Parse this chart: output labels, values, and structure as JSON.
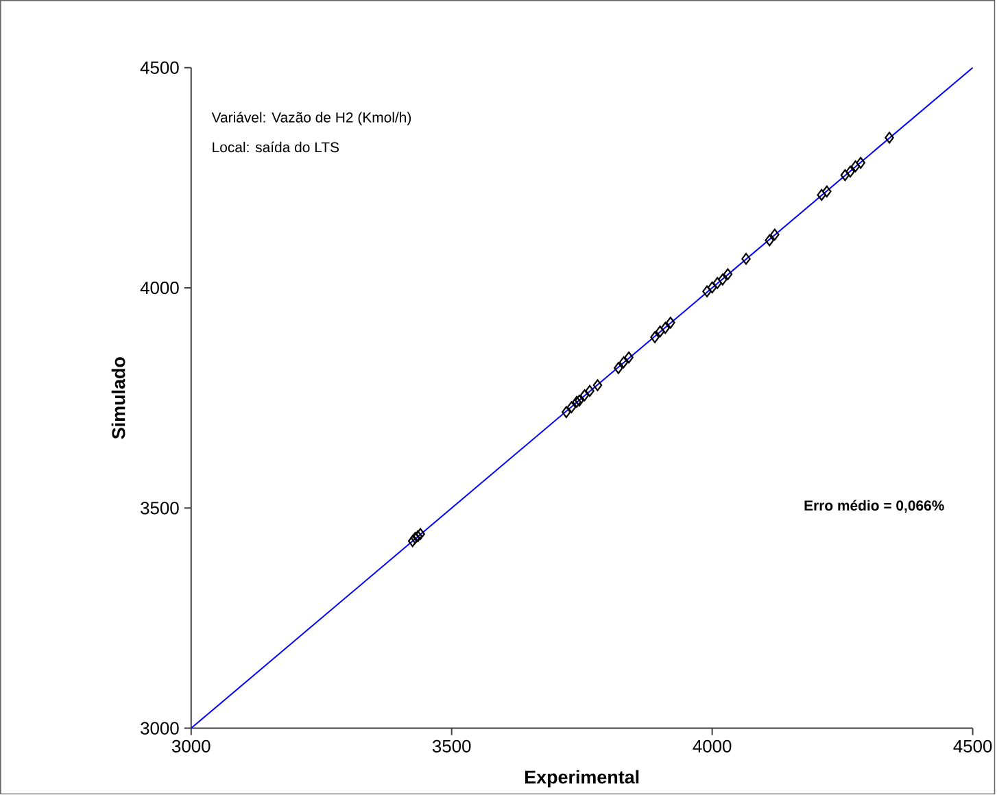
{
  "chart_data": {
    "type": "scatter",
    "xlabel": "Experimental",
    "ylabel": "Simulado",
    "xlim": [
      3000,
      4500
    ],
    "ylim": [
      3000,
      4500
    ],
    "xticks": [
      3000,
      3500,
      4000,
      4500
    ],
    "yticks": [
      3000,
      3500,
      4000,
      4500
    ],
    "grid": false,
    "marker": "diamond",
    "annotations": [
      "Variável: Vazão de H2 (Kmol/h)",
      "Local: saída do LTS",
      "**Erro médio = 0,066%**"
    ],
    "series": [
      {
        "color": "#000000",
        "x": [
          3425,
          3430,
          3435,
          3440,
          3720,
          3730,
          3740,
          3745,
          3755,
          3765,
          3780,
          3820,
          3830,
          3840,
          3890,
          3900,
          3910,
          3920,
          3990,
          4000,
          4010,
          4020,
          4030,
          4065,
          4110,
          4120,
          4210,
          4220,
          4255,
          4265,
          4275,
          4285,
          4340
        ],
        "values": [
          3425,
          3432,
          3436,
          3441,
          3718,
          3729,
          3741,
          3744,
          3756,
          3766,
          3779,
          3818,
          3831,
          3842,
          3888,
          3901,
          3909,
          3921,
          3992,
          4001,
          4011,
          4019,
          4031,
          4066,
          4108,
          4121,
          4211,
          4219,
          4256,
          4264,
          4276,
          4284,
          4341
        ]
      },
      {
        "type": "line",
        "color": "#0000ff",
        "marker": "none",
        "line_style": "solid",
        "x": [
          3000,
          4500
        ],
        "values": [
          3000,
          4500
        ]
      }
    ]
  }
}
